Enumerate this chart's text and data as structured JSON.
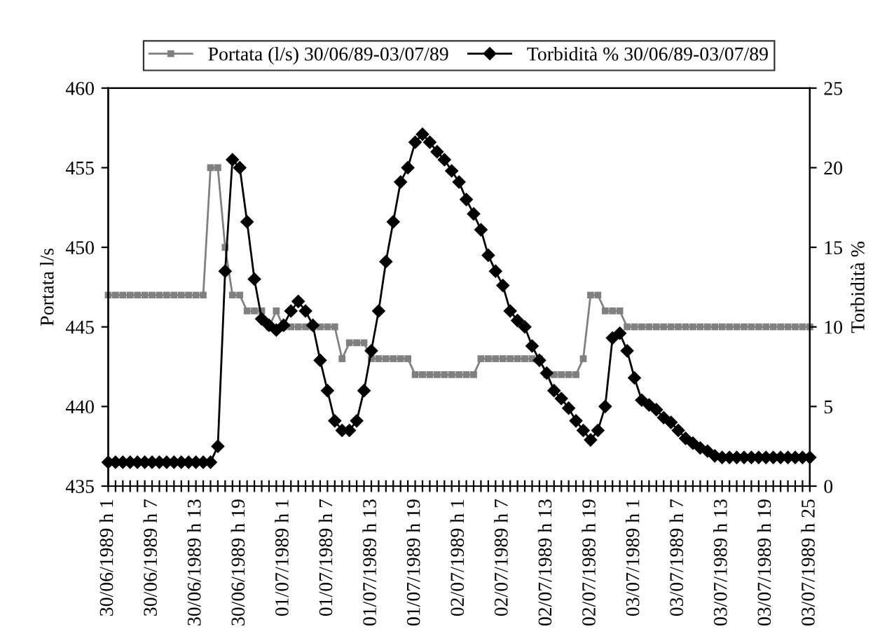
{
  "chart_data": {
    "type": "line",
    "categories": [
      "30/06/1989 h 1",
      null,
      null,
      null,
      null,
      null,
      "30/06/1989 h 7",
      null,
      null,
      null,
      null,
      null,
      "30/06/1989 h 13",
      null,
      null,
      null,
      null,
      null,
      "30/06/1989 h 19",
      null,
      null,
      null,
      null,
      null,
      "01/07/1989 h 1",
      null,
      null,
      null,
      null,
      null,
      "01/07/1989 h 7",
      null,
      null,
      null,
      null,
      null,
      "01/07/1989 h 13",
      null,
      null,
      null,
      null,
      null,
      "01/07/1989 h 19",
      null,
      null,
      null,
      null,
      null,
      "02/07/1989 h 1",
      null,
      null,
      null,
      null,
      null,
      "02/07/1989 h 7",
      null,
      null,
      null,
      null,
      null,
      "02/07/1989 h 13",
      null,
      null,
      null,
      null,
      null,
      "02/07/1989 h 19",
      null,
      null,
      null,
      null,
      null,
      "03/07/1989 h 1",
      null,
      null,
      null,
      null,
      null,
      "03/07/1989 h 7",
      null,
      null,
      null,
      null,
      null,
      "03/07/1989 h 13",
      null,
      null,
      null,
      null,
      null,
      "03/07/1989 h 19",
      null,
      null,
      null,
      null,
      null,
      "03/07/1989 h 25"
    ],
    "series": [
      {
        "name": "Portata (l/s) 30/06/89-03/07/89",
        "color": "#808080",
        "marker": "square",
        "values": [
          447,
          447,
          447,
          447,
          447,
          447,
          447,
          447,
          447,
          447,
          447,
          447,
          447,
          447,
          455,
          455,
          450,
          447,
          447,
          446,
          446,
          446,
          445,
          446,
          445,
          445,
          445,
          445,
          445,
          445,
          445,
          445,
          443,
          444,
          444,
          444,
          443,
          443,
          443,
          443,
          443,
          443,
          442,
          442,
          442,
          442,
          442,
          442,
          442,
          442,
          442,
          443,
          443,
          443,
          443,
          443,
          443,
          443,
          443,
          443,
          442,
          442,
          442,
          442,
          442,
          443,
          447,
          447,
          446,
          446,
          446,
          445,
          445,
          445,
          445,
          445,
          445,
          445,
          445,
          445,
          445,
          445,
          445,
          445,
          445,
          445,
          445,
          445,
          445,
          445,
          445,
          445,
          445,
          445,
          445,
          445,
          445
        ]
      },
      {
        "name": "Torbidità % 30/06/89-03/07/89",
        "color": "#000000",
        "marker": "diamond",
        "axis": "y2",
        "values": [
          1.5,
          1.5,
          1.5,
          1.5,
          1.5,
          1.5,
          1.5,
          1.5,
          1.5,
          1.5,
          1.5,
          1.5,
          1.5,
          1.5,
          1.5,
          2.5,
          13.5,
          20.5,
          20,
          16.6,
          13,
          10.5,
          10.1,
          9.8,
          10.1,
          11,
          11.6,
          11,
          10.1,
          7.9,
          6,
          4.1,
          3.5,
          3.5,
          4.1,
          6,
          8.5,
          11,
          14.1,
          16.6,
          19.1,
          20,
          21.6,
          22.1,
          21.6,
          21,
          20.5,
          19.8,
          19.1,
          18,
          17.1,
          16.1,
          14.5,
          13.5,
          12.6,
          11,
          10.4,
          10,
          8.8,
          7.9,
          7.1,
          6,
          5.5,
          4.9,
          4.1,
          3.5,
          2.9,
          3.5,
          5,
          9.3,
          9.6,
          8.5,
          6.8,
          5.4,
          5.1,
          4.8,
          4.3,
          4,
          3.5,
          3,
          2.7,
          2.4,
          2.2,
          1.9,
          1.8,
          1.8,
          1.8,
          1.8,
          1.8,
          1.8,
          1.8,
          1.8,
          1.8,
          1.8,
          1.8,
          1.8,
          1.8
        ]
      }
    ],
    "ylabel": "Portata l/s",
    "y2label": "Torbidità %",
    "ylim": [
      435,
      460
    ],
    "yticks": [
      435,
      440,
      445,
      450,
      455,
      460
    ],
    "y2lim": [
      0,
      25
    ],
    "y2ticks": [
      0,
      5,
      10,
      15,
      20,
      25
    ],
    "grid": false,
    "legend": "top",
    "line_style": "solid"
  }
}
